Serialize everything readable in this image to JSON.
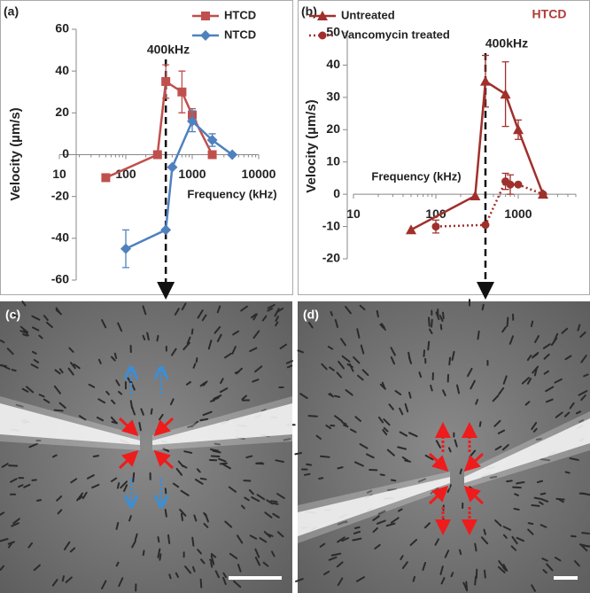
{
  "chart_data": [
    {
      "type": "line",
      "panel_label": "(a)",
      "annotation": "400kHz",
      "x_label": "Frequency (kHz)",
      "y_label": "Velocity (µm/s)",
      "log_x": true,
      "xlim": [
        10,
        10000
      ],
      "xticks": [
        10,
        100,
        1000,
        10000
      ],
      "ylim": [
        -60,
        60
      ],
      "yticks": [
        -60,
        -40,
        -20,
        0,
        20,
        40,
        60
      ],
      "legend": "upper right",
      "series": [
        {
          "name": "HTCD",
          "color": "#c0504d",
          "marker": "square",
          "line_style": "solid",
          "x": [
            50,
            300,
            400,
            700,
            1000,
            2000
          ],
          "values": [
            -11,
            0,
            35,
            30,
            19,
            0
          ],
          "errors": [
            null,
            null,
            8,
            10,
            3,
            null
          ]
        },
        {
          "name": "NTCD",
          "color": "#4f81bd",
          "marker": "diamond",
          "line_style": "solid",
          "x": [
            100,
            400,
            500,
            1000,
            2000,
            4000
          ],
          "values": [
            -45,
            -36,
            -6,
            16,
            7,
            0
          ],
          "errors": [
            9,
            null,
            null,
            5,
            3,
            null
          ]
        }
      ]
    },
    {
      "type": "line",
      "panel_label": "(b)",
      "annotation": "400kHz",
      "title": "HTCD",
      "x_label": "Frequency (kHz)",
      "y_label": "Velocity (µm/s)",
      "log_x": true,
      "xlim": [
        10,
        5000
      ],
      "xticks": [
        10,
        100,
        1000
      ],
      "ylim": [
        -20,
        50
      ],
      "yticks": [
        -20,
        -10,
        0,
        10,
        20,
        30,
        40,
        50
      ],
      "legend": "upper left",
      "series": [
        {
          "name": "Untreated",
          "color": "#a0302c",
          "marker": "triangle",
          "line_style": "solid",
          "x": [
            50,
            300,
            400,
            700,
            1000,
            2000
          ],
          "values": [
            -11,
            -0.5,
            35,
            31,
            20,
            0
          ],
          "errors": [
            null,
            null,
            8,
            10,
            3,
            null
          ]
        },
        {
          "name": "Vancomycin treated",
          "color": "#a0302c",
          "marker": "circle",
          "line_style": "dotted",
          "x": [
            100,
            400,
            700,
            800,
            1000,
            2000
          ],
          "values": [
            -10,
            -9.5,
            4,
            3,
            3,
            0
          ],
          "errors": [
            2,
            null,
            2.5,
            3,
            null,
            null
          ]
        }
      ]
    }
  ],
  "images": [
    {
      "panel_label": "(c)"
    },
    {
      "panel_label": "(d)"
    }
  ]
}
